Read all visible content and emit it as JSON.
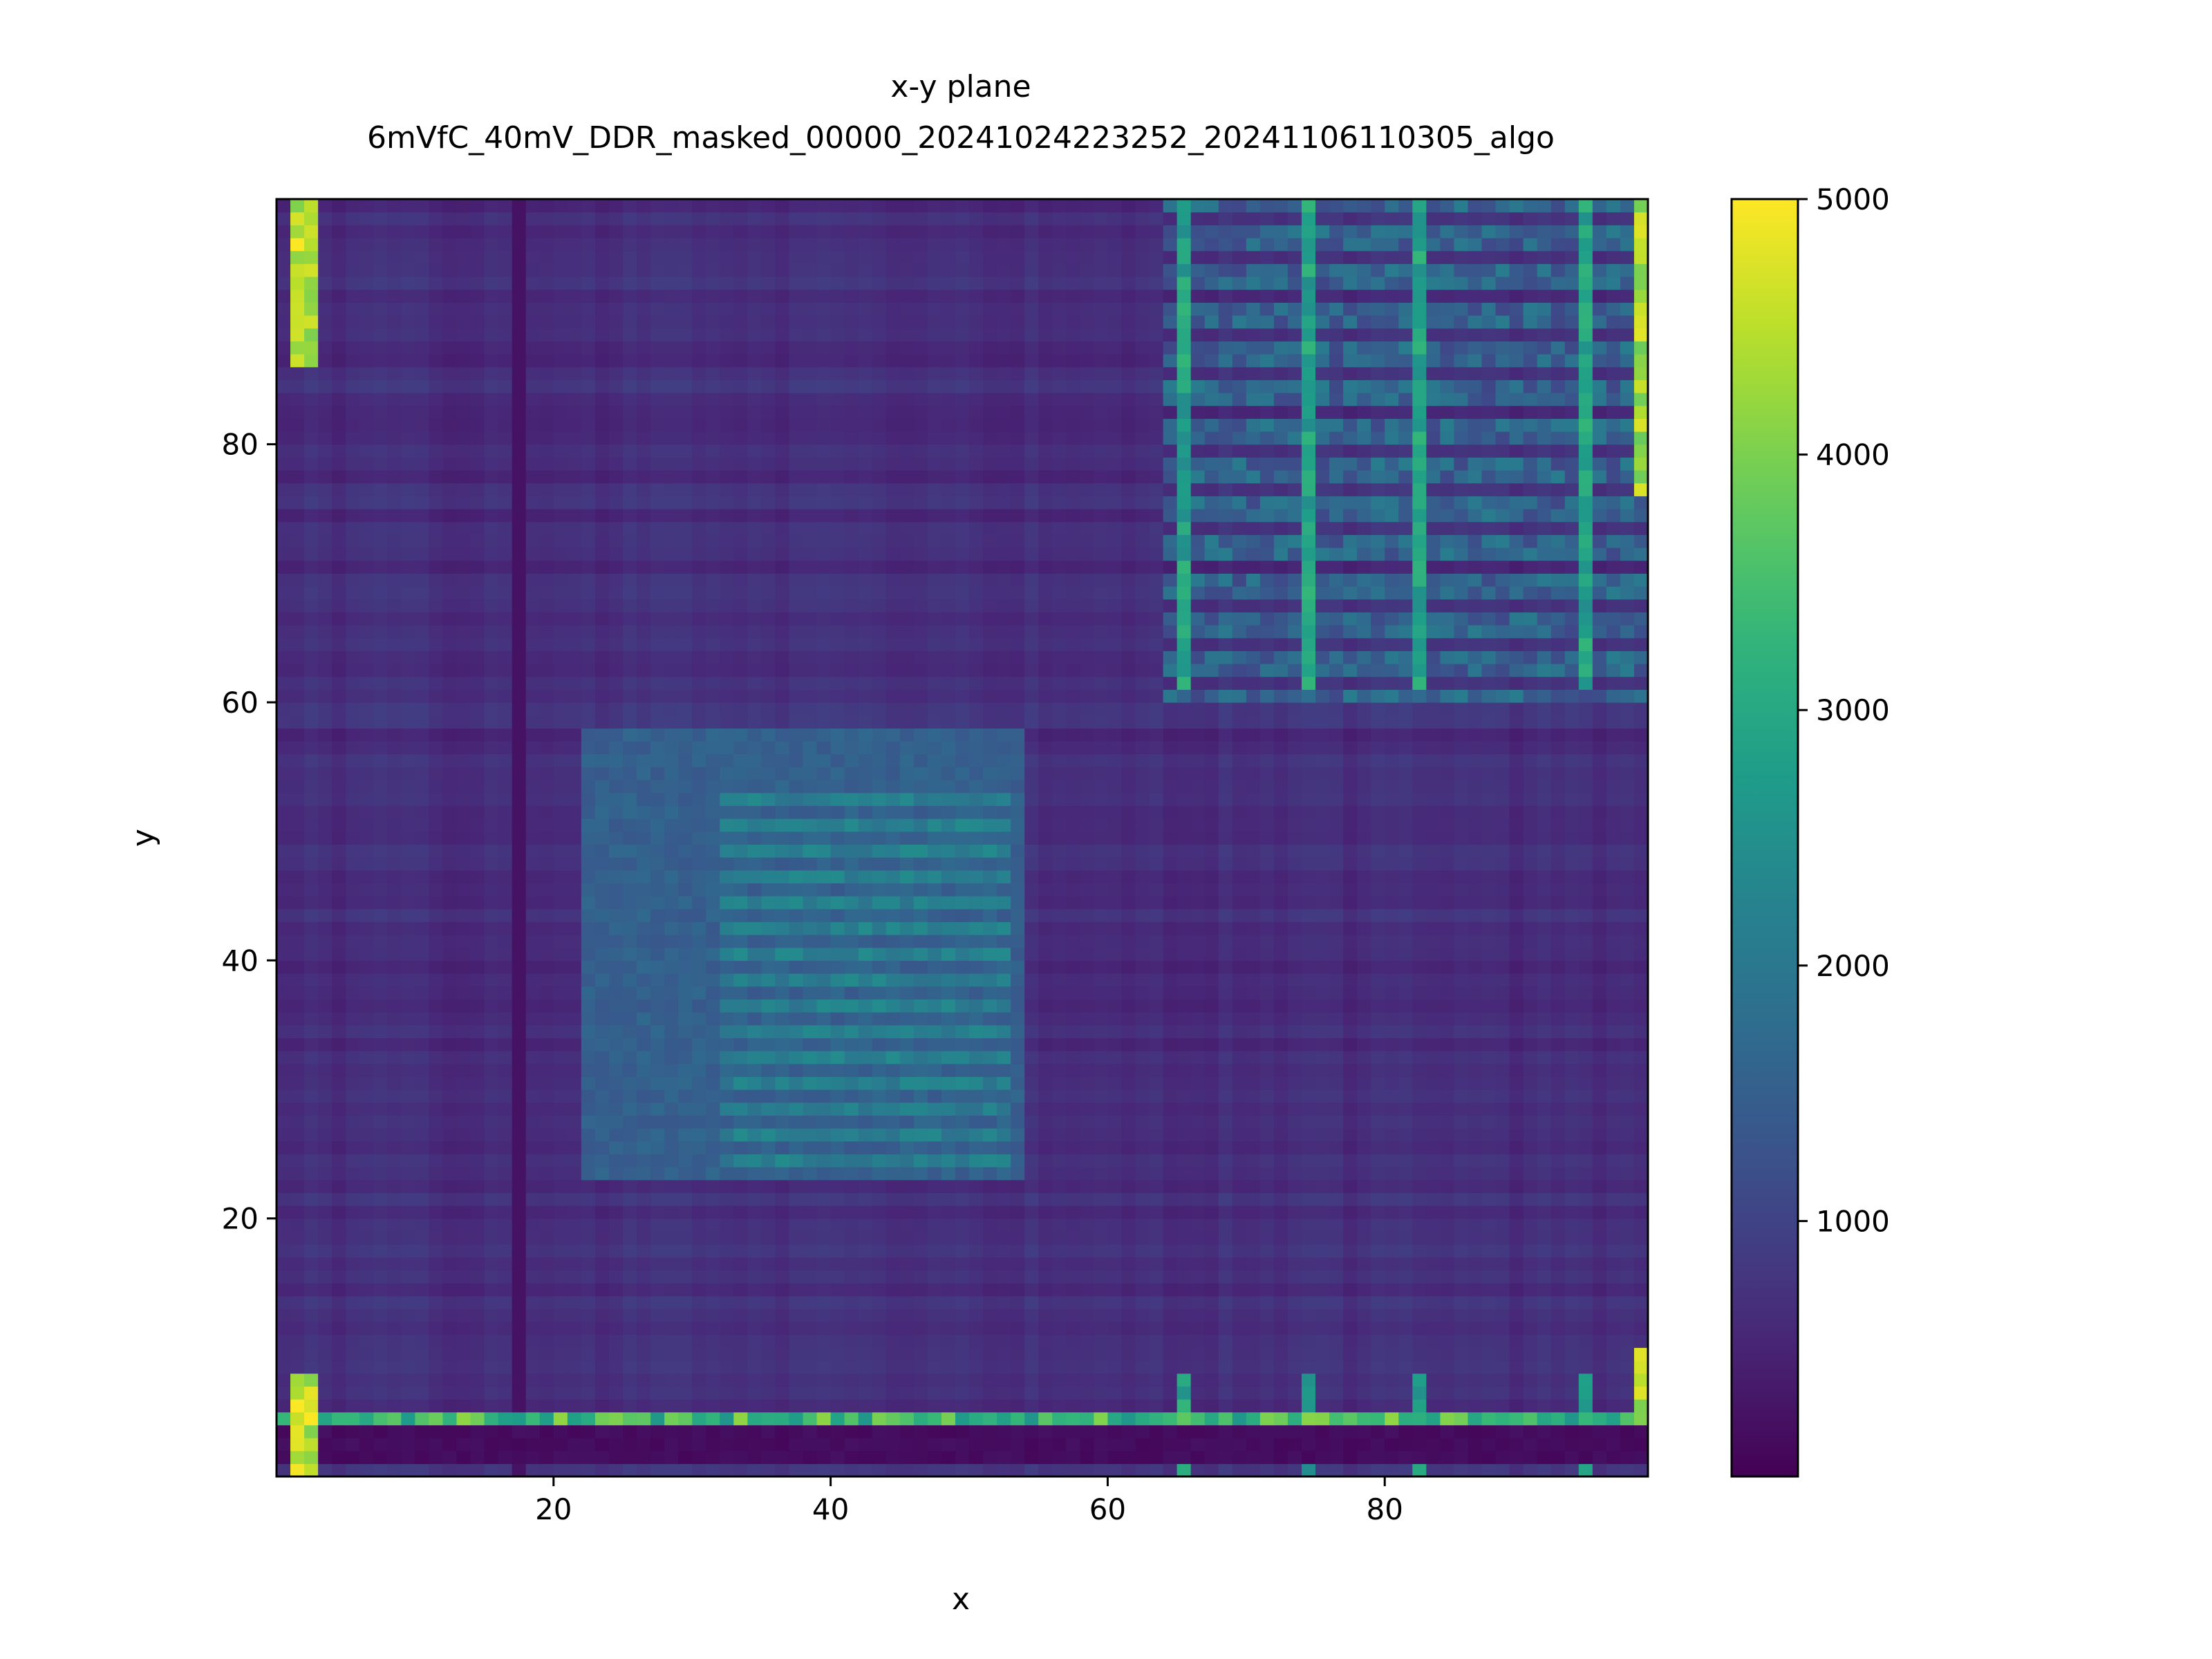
{
  "chart_data": {
    "type": "heatmap",
    "title": "x-y plane",
    "subtitle": "6mVfC_40mV_DDR_masked_00000_20241024223252_20241106110305_algo",
    "xlabel": "x",
    "ylabel": "y",
    "xlim": [
      0,
      99
    ],
    "ylim": [
      0,
      99
    ],
    "x_ticks": [
      20,
      40,
      60,
      80
    ],
    "y_ticks": [
      20,
      40,
      60,
      80
    ],
    "colorbar": {
      "colormap": "viridis",
      "range": [
        0,
        5000
      ],
      "ticks": [
        1000,
        2000,
        3000,
        4000,
        5000
      ]
    },
    "grid": false,
    "structure": {
      "base_level": 600,
      "central_square": {
        "x": [
          22,
          53
        ],
        "y": [
          23,
          57
        ],
        "level": 1600
      },
      "inner_square": {
        "x": [
          32,
          52
        ],
        "y": [
          24,
          52
        ],
        "level": 2200
      },
      "bright_corners": [
        {
          "x": [
            1,
            2
          ],
          "y": [
            86,
            99
          ],
          "level": 5000
        },
        {
          "x": [
            1,
            2
          ],
          "y": [
            0,
            7
          ],
          "level": 5000
        },
        {
          "x": [
            98,
            99
          ],
          "y": [
            76,
            99
          ],
          "level": 4800
        },
        {
          "x": [
            98,
            99
          ],
          "y": [
            4,
            9
          ],
          "level": 4800
        }
      ],
      "bright_row_y": 4,
      "dark_rows_y": [
        1,
        2,
        3
      ],
      "dark_column_x": 17,
      "bright_columns_x": [
        65,
        74,
        82,
        94
      ],
      "upper_right_region": {
        "x": [
          64,
          99
        ],
        "y": [
          60,
          99
        ],
        "level": 2100
      }
    }
  }
}
